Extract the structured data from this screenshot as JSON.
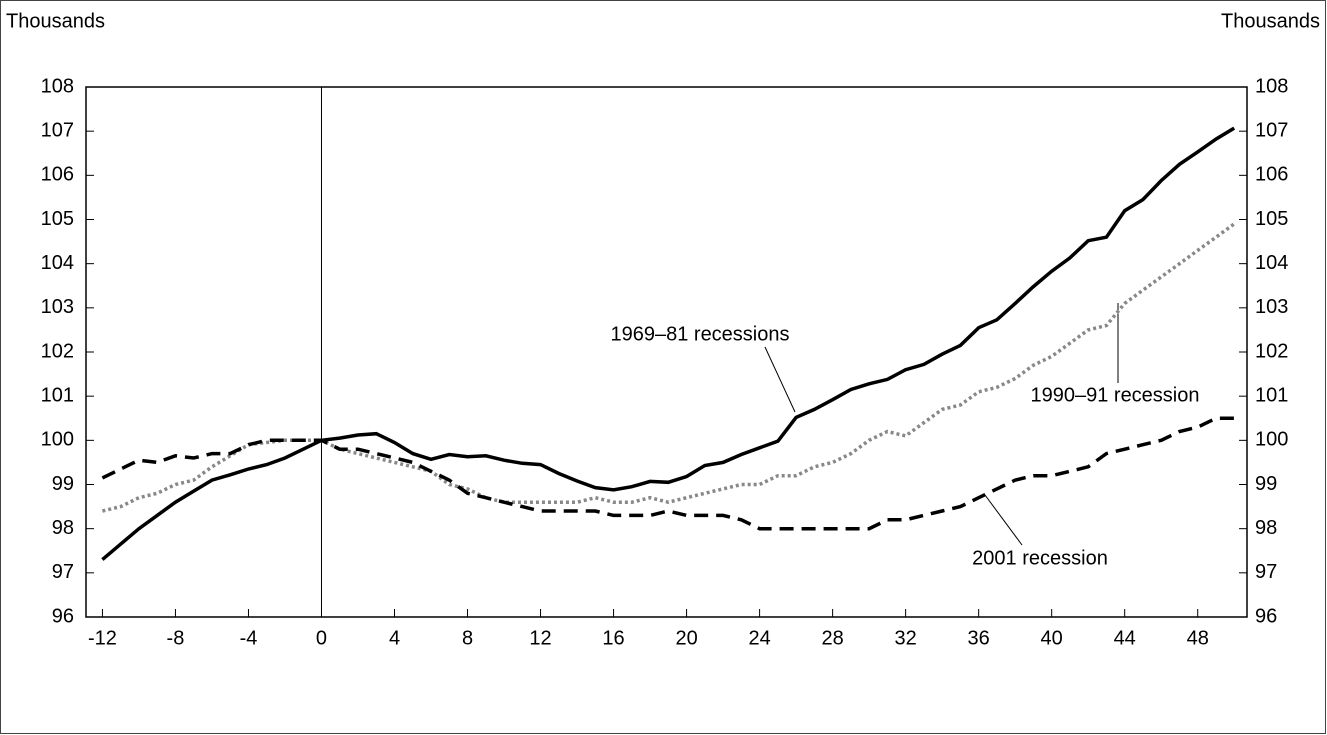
{
  "chart_data": {
    "type": "line",
    "y_label": "Thousands",
    "y2_label": "Thousands",
    "x": [
      -12,
      -11,
      -10,
      -9,
      -8,
      -7,
      -6,
      -5,
      -4,
      -3,
      -2,
      -1,
      0,
      1,
      2,
      3,
      4,
      5,
      6,
      7,
      8,
      9,
      10,
      11,
      12,
      13,
      14,
      15,
      16,
      17,
      18,
      19,
      20,
      21,
      22,
      23,
      24,
      25,
      26,
      27,
      28,
      29,
      30,
      31,
      32,
      33,
      34,
      35,
      36,
      37,
      38,
      39,
      40,
      41,
      42,
      43,
      44,
      45,
      46,
      47,
      48,
      49,
      50
    ],
    "xlim": [
      -12.9,
      50.7
    ],
    "xticks": [
      -12,
      -8,
      -4,
      0,
      4,
      8,
      12,
      16,
      20,
      24,
      28,
      32,
      36,
      40,
      44,
      48
    ],
    "ylim": [
      96,
      108
    ],
    "yticks": [
      96,
      97,
      98,
      99,
      100,
      101,
      102,
      103,
      104,
      105,
      106,
      107,
      108
    ],
    "y2lim": [
      96,
      108
    ],
    "y2ticks": [
      96,
      97,
      98,
      99,
      100,
      101,
      102,
      103,
      104,
      105,
      106,
      107,
      108
    ],
    "series": [
      {
        "name": "1969–81 recessions",
        "color": "#000000",
        "style": "solid",
        "values": [
          97.3,
          97.65,
          98.0,
          98.3,
          98.6,
          98.85,
          99.1,
          99.22,
          99.35,
          99.45,
          99.6,
          99.8,
          100,
          100.05,
          100.12,
          100.15,
          99.95,
          99.7,
          99.57,
          99.68,
          99.63,
          99.65,
          99.55,
          99.48,
          99.45,
          99.25,
          99.08,
          98.93,
          98.88,
          98.95,
          99.07,
          99.05,
          99.18,
          99.43,
          99.5,
          99.68,
          99.83,
          99.98,
          100.52,
          100.7,
          100.92,
          101.15,
          101.28,
          101.38,
          101.6,
          101.72,
          101.95,
          102.15,
          102.55,
          102.73,
          103.1,
          103.48,
          103.83,
          104.13,
          104.52,
          104.6,
          105.2,
          105.45,
          105.88,
          106.25,
          106.53,
          106.82,
          107.07
        ]
      },
      {
        "name": "1990–91 recession",
        "color": "#888888",
        "style": "dotted",
        "values": [
          98.4,
          98.5,
          98.7,
          98.8,
          99.0,
          99.1,
          99.4,
          99.65,
          99.9,
          99.95,
          100.0,
          100.0,
          100.0,
          99.8,
          99.7,
          99.6,
          99.5,
          99.4,
          99.3,
          99.0,
          98.9,
          98.7,
          98.6,
          98.6,
          98.6,
          98.6,
          98.6,
          98.7,
          98.6,
          98.6,
          98.7,
          98.6,
          98.7,
          98.8,
          98.9,
          99.0,
          99.0,
          99.2,
          99.2,
          99.4,
          99.5,
          99.7,
          100.0,
          100.2,
          100.1,
          100.4,
          100.7,
          100.8,
          101.1,
          101.2,
          101.4,
          101.7,
          101.9,
          102.2,
          102.5,
          102.6,
          103.1,
          103.4,
          103.7,
          104.0,
          104.3,
          104.6,
          104.9
        ]
      },
      {
        "name": "2001 recession",
        "color": "#000000",
        "style": "dashed",
        "values": [
          99.15,
          99.35,
          99.55,
          99.5,
          99.65,
          99.6,
          99.7,
          99.7,
          99.9,
          100.0,
          100.0,
          100.0,
          100.0,
          99.8,
          99.8,
          99.7,
          99.6,
          99.5,
          99.3,
          99.1,
          98.8,
          98.7,
          98.6,
          98.5,
          98.4,
          98.4,
          98.4,
          98.4,
          98.3,
          98.3,
          98.3,
          98.4,
          98.3,
          98.3,
          98.3,
          98.2,
          98.0,
          98.0,
          98.0,
          98.0,
          98.0,
          98.0,
          98.0,
          98.2,
          98.2,
          98.3,
          98.4,
          98.5,
          98.7,
          98.9,
          99.1,
          99.2,
          99.2,
          99.3,
          99.4,
          99.7,
          99.8,
          99.9,
          100.0,
          100.2,
          100.3,
          100.5,
          100.5
        ]
      }
    ]
  }
}
